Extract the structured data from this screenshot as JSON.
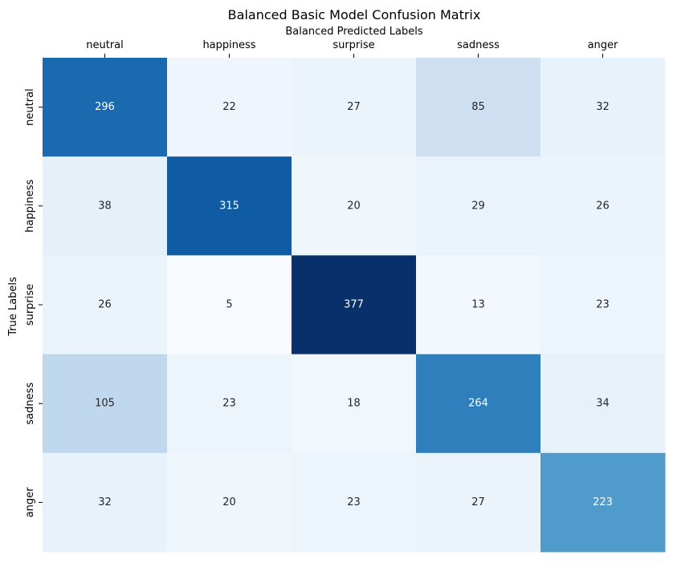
{
  "chart_data": {
    "type": "heatmap",
    "title": "Balanced Basic Model Confusion Matrix",
    "xlabel": "Balanced Predicted Labels",
    "ylabel": "True Labels",
    "x_categories": [
      "neutral",
      "happiness",
      "surprise",
      "sadness",
      "anger"
    ],
    "y_categories": [
      "neutral",
      "happiness",
      "surprise",
      "sadness",
      "anger"
    ],
    "values": [
      [
        296,
        22,
        27,
        85,
        32
      ],
      [
        38,
        315,
        20,
        29,
        26
      ],
      [
        26,
        5,
        377,
        13,
        23
      ],
      [
        105,
        23,
        18,
        264,
        34
      ],
      [
        32,
        20,
        23,
        27,
        223
      ]
    ],
    "x_axis_position": "top",
    "colormap": "Blues",
    "colorbar": false,
    "grid": false
  }
}
